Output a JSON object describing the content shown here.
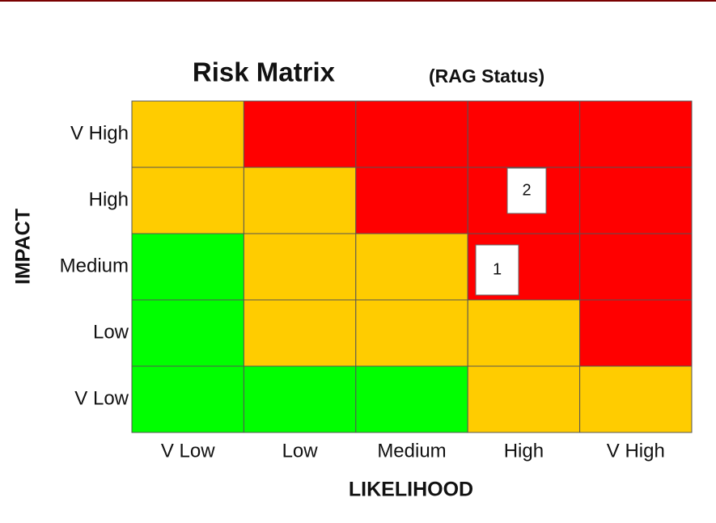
{
  "title": "Risk Matrix",
  "subtitle": "(RAG Status)",
  "y_axis_label": "IMPACT",
  "x_axis_label": "LIKELIHOOD",
  "rows": [
    "V High",
    "High",
    "Medium",
    "Low",
    "V Low"
  ],
  "columns": [
    "V Low",
    "Low",
    "Medium",
    "High",
    "V High"
  ],
  "cell_colors": [
    [
      "#FFCC00",
      "#FF0000",
      "#FF0000",
      "#FF0000",
      "#FF0000"
    ],
    [
      "#FFCC00",
      "#FFCC00",
      "#FF0000",
      "#FF0000",
      "#FF0000"
    ],
    [
      "#00FF00",
      "#FFCC00",
      "#FFCC00",
      "#FF0000",
      "#FF0000"
    ],
    [
      "#00FF00",
      "#FFCC00",
      "#FFCC00",
      "#FFCC00",
      "#FF0000"
    ],
    [
      "#00FF00",
      "#00FF00",
      "#00FF00",
      "#FFCC00",
      "#FFCC00"
    ]
  ],
  "markers": [
    "2",
    "1"
  ]
}
